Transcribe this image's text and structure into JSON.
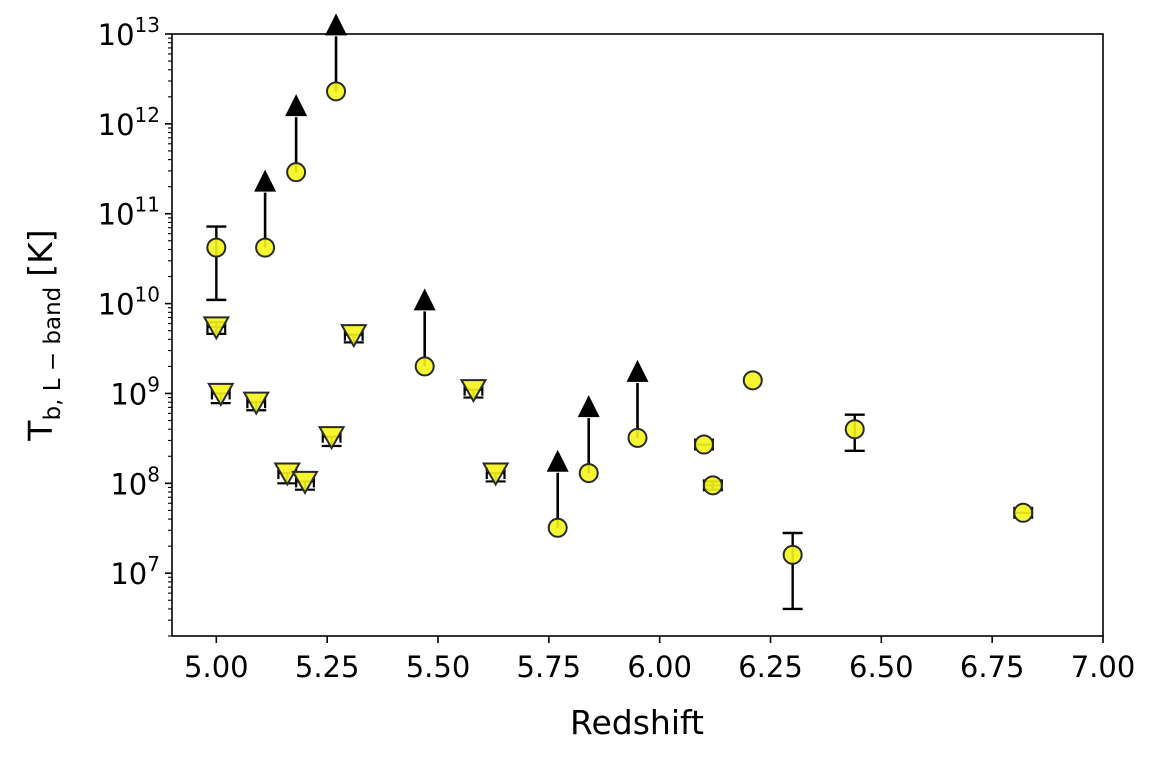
{
  "chart_data": {
    "type": "scatter",
    "title": "",
    "xlabel": "Redshift",
    "ylabel": {
      "main": "T",
      "sub": "b, L − band",
      "unit": "[K]"
    },
    "x_scale": "linear",
    "y_scale": "log",
    "xlim": [
      4.9,
      7.0
    ],
    "ylim": [
      2000000.0,
      10000000000000.0
    ],
    "x_ticks": [
      5.0,
      5.25,
      5.5,
      5.75,
      6.0,
      6.25,
      6.5,
      6.75,
      7.0
    ],
    "x_tick_labels": [
      "5.00",
      "5.25",
      "5.50",
      "5.75",
      "6.00",
      "6.25",
      "6.50",
      "6.75",
      "7.00"
    ],
    "y_tick_exponents": [
      7,
      8,
      9,
      10,
      11,
      12,
      13
    ],
    "y_tick_base": "10",
    "grid": false,
    "legend": "none",
    "colors": {
      "marker_fill": "#f5f51a",
      "marker_edge": "#2a2a2a",
      "arrow": "#000000",
      "errorbar": "#000000"
    },
    "series": [
      {
        "marker": "circle",
        "points": [
          {
            "x": 5.0,
            "y": 42000000000.0,
            "ylo": 11000000000.0,
            "yhi": 72000000000.0
          },
          {
            "x": 5.11,
            "y": 42000000000.0,
            "lower_limit": true
          },
          {
            "x": 5.18,
            "y": 290000000000.0,
            "lower_limit": true
          },
          {
            "x": 5.27,
            "y": 2300000000000.0,
            "lower_limit": true
          },
          {
            "x": 5.47,
            "y": 2000000000.0,
            "lower_limit": true
          },
          {
            "x": 5.77,
            "y": 32000000.0,
            "lower_limit": true
          },
          {
            "x": 5.84,
            "y": 130000000.0,
            "lower_limit": true
          },
          {
            "x": 5.95,
            "y": 320000000.0,
            "lower_limit": true
          },
          {
            "x": 6.1,
            "y": 270000000.0,
            "xerr": 0.02
          },
          {
            "x": 6.12,
            "y": 95000000.0,
            "xerr": 0.02,
            "ylo": 85000000.0,
            "yhi": 105000000.0
          },
          {
            "x": 6.21,
            "y": 1400000000.0
          },
          {
            "x": 6.3,
            "y": 16000000.0,
            "ylo": 4000000.0,
            "yhi": 28000000.0
          },
          {
            "x": 6.44,
            "y": 400000000.0,
            "ylo": 230000000.0,
            "yhi": 580000000.0
          },
          {
            "x": 6.82,
            "y": 47000000.0,
            "xerr": 0.02
          }
        ]
      },
      {
        "marker": "triangle-down",
        "points": [
          {
            "x": 5.0,
            "y": 5500000000.0,
            "ylo": 4600000000.0,
            "yhi": 6200000000.0,
            "xerr": 0.02
          },
          {
            "x": 5.01,
            "y": 1000000000.0,
            "ylo": 780000000.0,
            "xerr": 0.02
          },
          {
            "x": 5.09,
            "y": 800000000.0,
            "ylo": 650000000.0,
            "xerr": 0.02
          },
          {
            "x": 5.16,
            "y": 130000000.0,
            "ylo": 100000000.0,
            "xerr": 0.02
          },
          {
            "x": 5.2,
            "y": 105000000.0,
            "ylo": 85000000.0,
            "xerr": 0.02
          },
          {
            "x": 5.26,
            "y": 330000000.0,
            "ylo": 260000000.0,
            "xerr": 0.02
          },
          {
            "x": 5.31,
            "y": 4500000000.0,
            "ylo": 3700000000.0,
            "xerr": 0.02
          },
          {
            "x": 5.58,
            "y": 1100000000.0,
            "ylo": 900000000.0,
            "xerr": 0.02
          },
          {
            "x": 5.63,
            "y": 130000000.0,
            "ylo": 105000000.0,
            "xerr": 0.02
          }
        ]
      }
    ]
  }
}
